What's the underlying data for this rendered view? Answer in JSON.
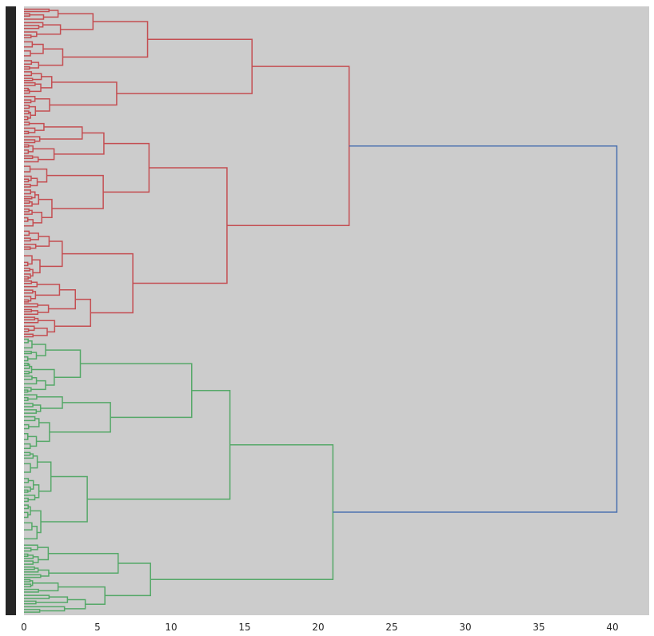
{
  "chart_data": {
    "type": "dendrogram",
    "orientation": "left",
    "xlabel": "",
    "ylabel": "",
    "xlim": [
      0,
      42.5
    ],
    "x_ticks": [
      0,
      5,
      10,
      15,
      20,
      25,
      30,
      35,
      40
    ],
    "x_tick_labels": [
      "0",
      "5",
      "10",
      "15",
      "20",
      "25",
      "30",
      "35",
      "40"
    ],
    "grid": false,
    "background_color": "#cccccc",
    "leaf_label_color": "#262626",
    "colors": {
      "cluster_1": "#c44e52",
      "cluster_2": "#55a868",
      "root_link": "#4c72b0"
    },
    "root_merge_distance": 40.3,
    "clusters": [
      {
        "color": "#c44e52",
        "merge_distance": 22.1,
        "subclusters": [
          {
            "merge_distance": 15.5,
            "children_merge": [
              8.4,
              6.3
            ]
          },
          {
            "merge_distance": 13.8,
            "children_merge": [
              8.5,
              7.4
            ]
          }
        ]
      },
      {
        "color": "#55a868",
        "merge_distance": 21.0,
        "subclusters": [
          {
            "merge_distance": 14.0,
            "children_merge": [
              11.4,
              4.3
            ]
          },
          {
            "merge_distance": 8.6,
            "children_merge": [
              6.4,
              5.5
            ]
          }
        ]
      }
    ]
  }
}
